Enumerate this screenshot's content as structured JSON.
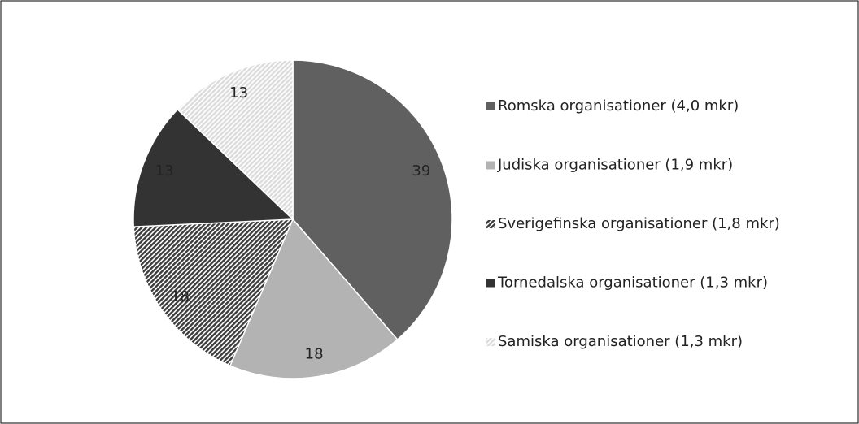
{
  "chart_data": {
    "type": "pie",
    "categories": [
      "Romska organisationer (4,0 mkr)",
      "Judiska organisationer (1,9 mkr)",
      "Sverigefinska organisationer (1,8 mkr)",
      "Tornedalska organisationer (1,3 mkr)",
      "Samiska organisationer (1,3 mkr)"
    ],
    "values": [
      39,
      18,
      18,
      13,
      13
    ],
    "colors": [
      "#606060",
      "#b3b3b3",
      "#3c3c3c",
      "#333333",
      "#dcdcdc"
    ],
    "hatch": [
      false,
      false,
      true,
      false,
      true
    ],
    "legend": "right"
  }
}
